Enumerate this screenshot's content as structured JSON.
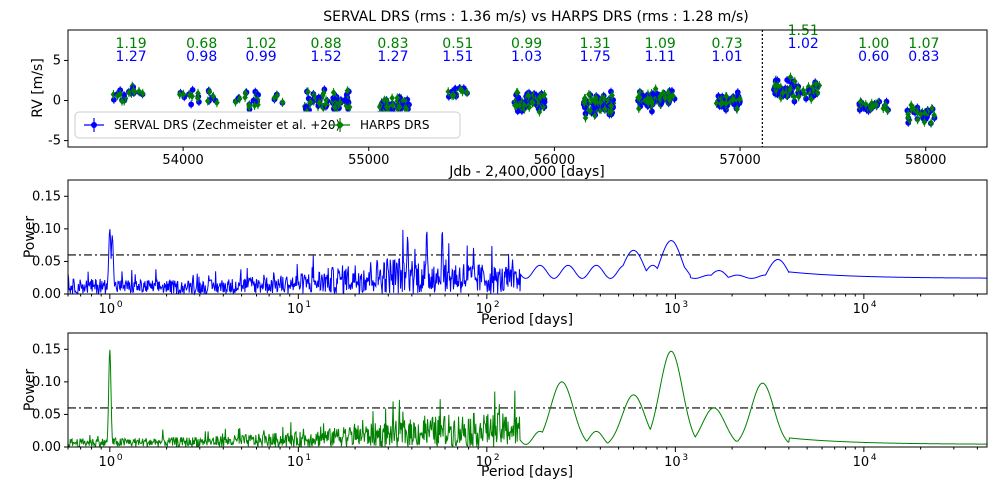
{
  "chart_data": [
    {
      "type": "scatter",
      "title": "SERVAL DRS (rms : 1.36 m/s)   vs   HARPS DRS (rms : 1.28 m/s)",
      "xlabel": "Jdb - 2,400,000 [days]",
      "ylabel": "RV [m/s]",
      "xlim": [
        53380,
        58330
      ],
      "ylim": [
        -5.8,
        8.8
      ],
      "xticks": [
        54000,
        55000,
        56000,
        57000,
        58000
      ],
      "yticks": [
        -5,
        0,
        5
      ],
      "vline_x": 57120,
      "legend": {
        "placement": "lower-left",
        "entries": [
          {
            "label": "SERVAL DRS (Zechmeister et al. +20)",
            "color": "#0000ff"
          },
          {
            "label": "HARPS DRS",
            "color": "#008000"
          }
        ]
      },
      "season_rms": [
        {
          "x": 53720,
          "harps": "1.19",
          "serval": "1.27"
        },
        {
          "x": 54100,
          "harps": "0.68",
          "serval": "0.98"
        },
        {
          "x": 54420,
          "harps": "1.02",
          "serval": "0.99"
        },
        {
          "x": 54770,
          "harps": "0.88",
          "serval": "1.52"
        },
        {
          "x": 55130,
          "harps": "0.83",
          "serval": "1.27"
        },
        {
          "x": 55480,
          "harps": "0.51",
          "serval": "1.51"
        },
        {
          "x": 55850,
          "harps": "0.99",
          "serval": "1.03"
        },
        {
          "x": 56220,
          "harps": "1.31",
          "serval": "1.75"
        },
        {
          "x": 56570,
          "harps": "1.09",
          "serval": "1.11"
        },
        {
          "x": 56930,
          "harps": "0.73",
          "serval": "1.01"
        },
        {
          "x": 57340,
          "harps": "1.51",
          "serval": "1.02"
        },
        {
          "x": 57720,
          "harps": "1.00",
          "serval": "0.60"
        },
        {
          "x": 57990,
          "harps": "1.07",
          "serval": "0.83"
        }
      ],
      "seasons": [
        {
          "start": 53600,
          "end": 53800,
          "mean": 0.8,
          "spread": 1.6,
          "n": 14
        },
        {
          "start": 53980,
          "end": 54200,
          "mean": 0.4,
          "spread": 0.9,
          "n": 12
        },
        {
          "start": 54280,
          "end": 54560,
          "mean": 0.2,
          "spread": 1.2,
          "n": 14
        },
        {
          "start": 54660,
          "end": 54900,
          "mean": -0.2,
          "spread": 1.5,
          "n": 40
        },
        {
          "start": 55050,
          "end": 55220,
          "mean": -0.6,
          "spread": 1.3,
          "n": 45
        },
        {
          "start": 55430,
          "end": 55540,
          "mean": 1.0,
          "spread": 0.9,
          "n": 10
        },
        {
          "start": 55780,
          "end": 55950,
          "mean": -0.3,
          "spread": 1.2,
          "n": 50
        },
        {
          "start": 56150,
          "end": 56320,
          "mean": -0.5,
          "spread": 1.6,
          "n": 55
        },
        {
          "start": 56450,
          "end": 56650,
          "mean": 0.2,
          "spread": 1.2,
          "n": 50
        },
        {
          "start": 56880,
          "end": 57000,
          "mean": 0.0,
          "spread": 1.0,
          "n": 25
        },
        {
          "start": 57180,
          "end": 57420,
          "mean": 1.3,
          "spread": 1.6,
          "n": 40
        },
        {
          "start": 57640,
          "end": 57800,
          "mean": -0.7,
          "spread": 0.9,
          "n": 18
        },
        {
          "start": 57900,
          "end": 58060,
          "mean": -1.8,
          "spread": 1.1,
          "n": 22
        }
      ]
    },
    {
      "type": "line",
      "scale": "log-x",
      "xlabel": "Period [days]",
      "ylabel": "Power",
      "xlim": [
        0.6,
        45000
      ],
      "ylim": [
        0,
        0.175
      ],
      "xticks_exp": [
        0,
        1,
        2,
        3,
        4
      ],
      "yticks": [
        "0.00",
        "0.05",
        "0.10",
        "0.15"
      ],
      "fap_level": 0.06,
      "color": "#0000ff",
      "series": {
        "name": "SERVAL DRS",
        "peaks": [
          {
            "period": 1.0,
            "power": 0.1
          },
          {
            "period": 1.03,
            "power": 0.09
          },
          {
            "period": 38,
            "power": 0.09
          },
          {
            "period": 48,
            "power": 0.1
          },
          {
            "period": 58,
            "power": 0.1
          },
          {
            "period": 600,
            "power": 0.067
          },
          {
            "period": 950,
            "power": 0.082
          },
          {
            "period": 1700,
            "power": 0.036
          },
          {
            "period": 3500,
            "power": 0.053
          }
        ],
        "noise_floor": [
          {
            "period": 0.6,
            "level": 0.018
          },
          {
            "period": 3,
            "level": 0.016
          },
          {
            "period": 10,
            "level": 0.024
          },
          {
            "period": 30,
            "level": 0.045
          },
          {
            "period": 70,
            "level": 0.04
          },
          {
            "period": 150,
            "level": 0.03
          }
        ],
        "tail_level": 0.024
      }
    },
    {
      "type": "line",
      "scale": "log-x",
      "xlabel": "Period [days]",
      "ylabel": "Power",
      "xlim": [
        0.6,
        45000
      ],
      "ylim": [
        0,
        0.175
      ],
      "xticks_exp": [
        0,
        1,
        2,
        3,
        4
      ],
      "yticks": [
        "0.00",
        "0.05",
        "0.10",
        "0.15"
      ],
      "fap_level": 0.06,
      "color": "#008000",
      "series": {
        "name": "HARPS DRS",
        "peaks": [
          {
            "period": 1.0,
            "power": 0.15
          },
          {
            "period": 250,
            "power": 0.1
          },
          {
            "period": 600,
            "power": 0.08
          },
          {
            "period": 950,
            "power": 0.147
          },
          {
            "period": 1600,
            "power": 0.06
          },
          {
            "period": 2900,
            "power": 0.098
          }
        ],
        "noise_floor": [
          {
            "period": 0.6,
            "level": 0.01
          },
          {
            "period": 3,
            "level": 0.012
          },
          {
            "period": 10,
            "level": 0.018
          },
          {
            "period": 30,
            "level": 0.03
          },
          {
            "period": 70,
            "level": 0.04
          },
          {
            "period": 150,
            "level": 0.04
          }
        ],
        "tail_level": 0.004
      }
    }
  ]
}
